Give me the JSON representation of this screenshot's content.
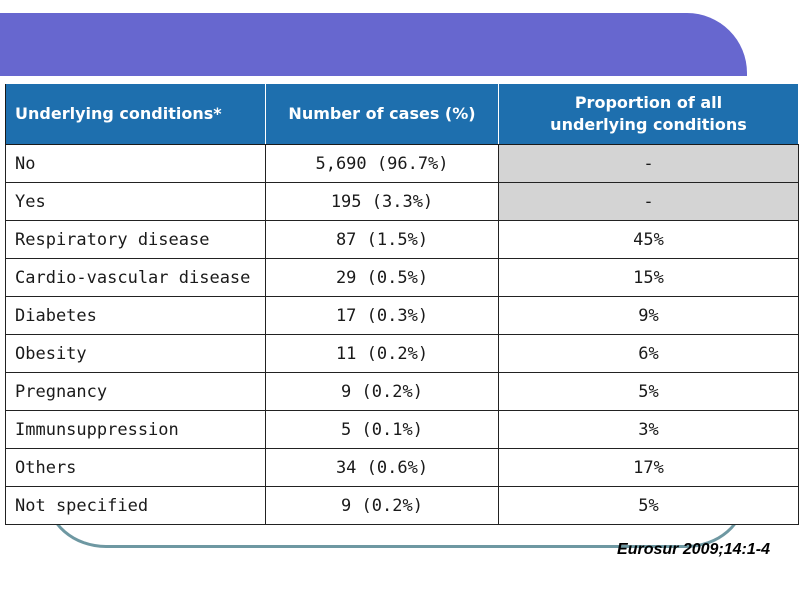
{
  "table": {
    "headers": {
      "condition": "Underlying conditions*",
      "cases": "Number of cases (%)",
      "proportion_line1": "Proportion of all",
      "proportion_line2": "underlying conditions"
    },
    "rows": [
      {
        "condition": "No",
        "cases": "5,690 (96.7%)",
        "proportion": "-"
      },
      {
        "condition": "Yes",
        "cases": "195 (3.3%)",
        "proportion": "-"
      },
      {
        "condition": "Respiratory disease",
        "cases": "87 (1.5%)",
        "proportion": "45%"
      },
      {
        "condition": "Cardio-vascular disease",
        "cases": "29 (0.5%)",
        "proportion": "15%"
      },
      {
        "condition": "Diabetes",
        "cases": "17 (0.3%)",
        "proportion": "9%"
      },
      {
        "condition": "Obesity",
        "cases": "11 (0.2%)",
        "proportion": "6%"
      },
      {
        "condition": "Pregnancy",
        "cases": "9 (0.2%)",
        "proportion": "5%"
      },
      {
        "condition": "Immunsuppression",
        "cases": "5 (0.1%)",
        "proportion": "3%"
      },
      {
        "condition": "Others",
        "cases": "34 (0.6%)",
        "proportion": "17%"
      },
      {
        "condition": "Not specified",
        "cases": "9 (0.2%)",
        "proportion": "5%"
      }
    ]
  },
  "citation": "Eurosur 2009;14:1-4",
  "colors": {
    "banner": "#6767cf",
    "header_bg": "#1e6fae",
    "na_cell": "#d4d4d4",
    "curve": "#6e98a2"
  }
}
